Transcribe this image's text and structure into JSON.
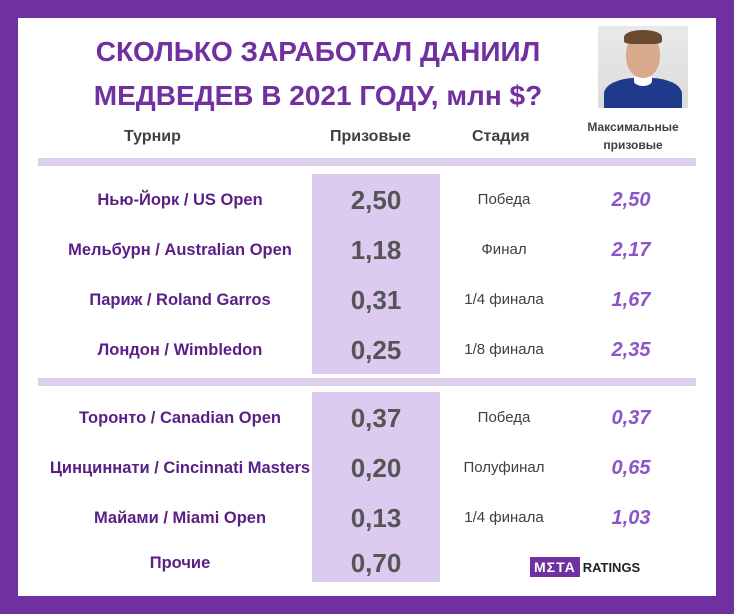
{
  "title": {
    "line1": "СКОЛЬКО ЗАРАБОТАЛ ДАНИИЛ",
    "line2": "МЕДВЕДЕВ В 2021 ГОДУ, млн $?"
  },
  "headers": {
    "tournament": "Турнир",
    "prize": "Призовые",
    "stage": "Стадия",
    "max_prize_line1": "Максимальные",
    "max_prize_line2": "призовые"
  },
  "group1": [
    {
      "tournament": "Нью-Йорк / US Open",
      "prize": "2,50",
      "stage": "Победа",
      "max": "2,50"
    },
    {
      "tournament": "Мельбурн / Australian Open",
      "prize": "1,18",
      "stage": "Финал",
      "max": "2,17"
    },
    {
      "tournament": "Париж / Roland Garros",
      "prize": "0,31",
      "stage": "1/4 финала",
      "max": "1,67"
    },
    {
      "tournament": "Лондон / Wimbledon",
      "prize": "0,25",
      "stage": "1/8 финала",
      "max": "2,35"
    }
  ],
  "group2": [
    {
      "tournament": "Торонто / Canadian Open",
      "prize": "0,37",
      "stage": "Победа",
      "max": "0,37"
    },
    {
      "tournament": "Цинциннати / Cincinnati Masters",
      "prize": "0,20",
      "stage": "Полуфинал",
      "max": "0,65"
    },
    {
      "tournament": "Майами / Miami Open",
      "prize": "0,13",
      "stage": "1/4 финала",
      "max": "1,03"
    },
    {
      "tournament": "Прочие",
      "prize": "0,70",
      "stage": "",
      "max": ""
    }
  ],
  "logo": {
    "part1": "MΣTA",
    "part2": "RATINGS"
  },
  "colors": {
    "frame": "#7030a0",
    "title": "#7030a0",
    "prize_bg": "#dccaf0",
    "max_text": "#8b55c8"
  }
}
